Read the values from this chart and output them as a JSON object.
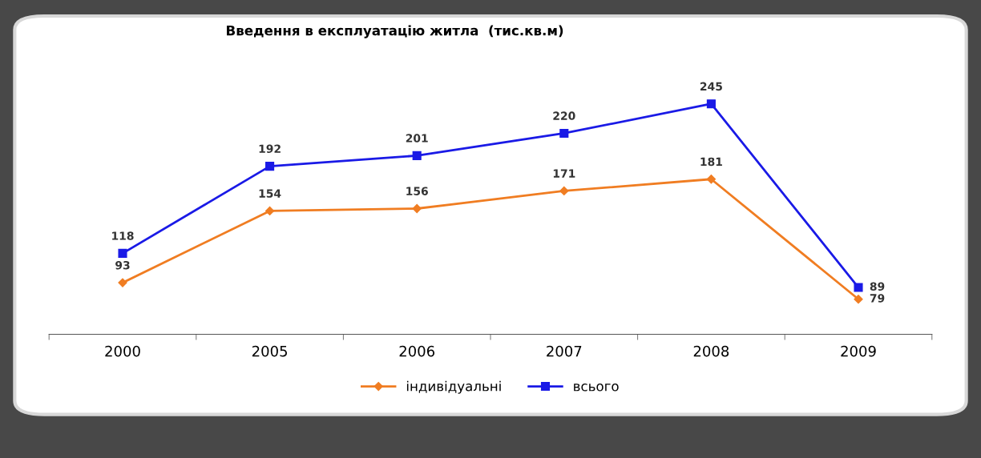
{
  "chart_data": {
    "type": "line",
    "title": "Введення в експлуатацію житла  (тис.кв.м)",
    "categories": [
      "2000",
      "2005",
      "2006",
      "2007",
      "2008",
      "2009"
    ],
    "series": [
      {
        "name": "індивідуальні",
        "color": "#f07d22",
        "marker": "diamond",
        "values": [
          93,
          154,
          156,
          171,
          181,
          79
        ]
      },
      {
        "name": "всього",
        "color": "#1a1ae6",
        "marker": "square",
        "values": [
          118,
          192,
          201,
          220,
          245,
          89
        ]
      }
    ],
    "data_labels": true,
    "grid": false,
    "legend": "bottom",
    "tick_labels": "x",
    "line_style": "solid"
  }
}
